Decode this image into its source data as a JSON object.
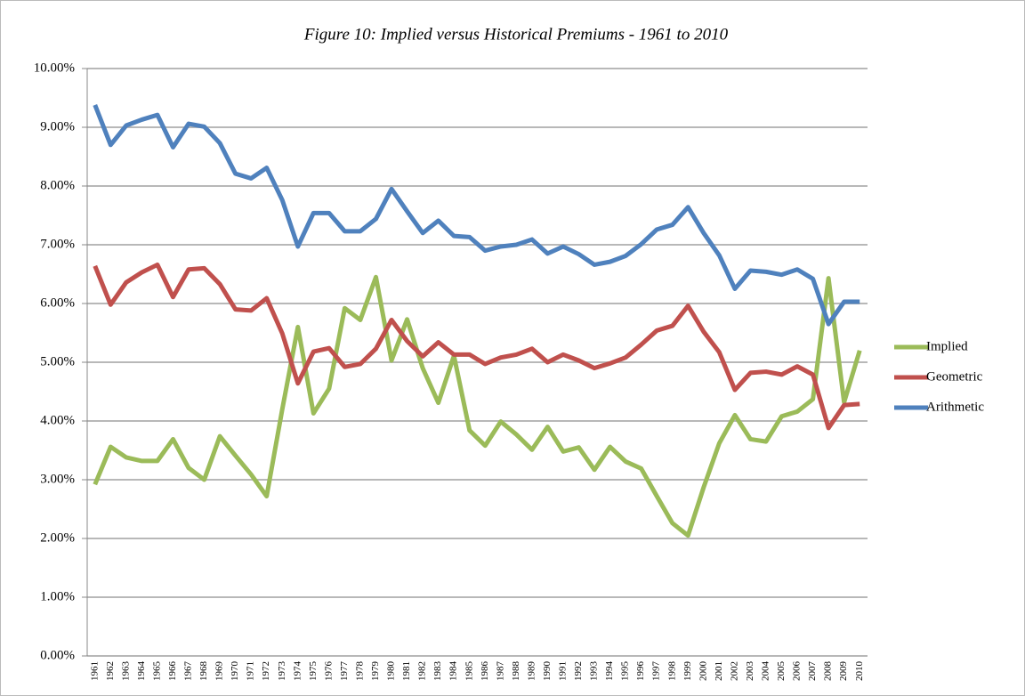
{
  "chart_data": {
    "type": "line",
    "title": "Figure 10: Implied versus Historical Premiums - 1961 to 2010",
    "categories": [
      "1961",
      "1962",
      "1963",
      "1964",
      "1965",
      "1966",
      "1967",
      "1968",
      "1969",
      "1970",
      "1971",
      "1972",
      "1973",
      "1974",
      "1975",
      "1976",
      "1977",
      "1978",
      "1979",
      "1980",
      "1981",
      "1982",
      "1983",
      "1984",
      "1985",
      "1986",
      "1987",
      "1988",
      "1989",
      "1990",
      "1991",
      "1992",
      "1993",
      "1994",
      "1995",
      "1996",
      "1997",
      "1998",
      "1999",
      "2000",
      "2001",
      "2002",
      "2003",
      "2004",
      "2005",
      "2006",
      "2007",
      "2008",
      "2009",
      "2010"
    ],
    "series": [
      {
        "name": "Implied",
        "color": "#9bbb59",
        "values": [
          2.92,
          3.56,
          3.38,
          3.32,
          3.32,
          3.69,
          3.2,
          3.0,
          3.74,
          3.41,
          3.09,
          2.72,
          4.2,
          5.6,
          4.13,
          4.55,
          5.92,
          5.72,
          6.45,
          5.03,
          5.73,
          4.9,
          4.31,
          5.11,
          3.84,
          3.58,
          3.99,
          3.77,
          3.51,
          3.9,
          3.48,
          3.55,
          3.17,
          3.56,
          3.31,
          3.19,
          2.72,
          2.26,
          2.05,
          2.87,
          3.62,
          4.1,
          3.69,
          3.65,
          4.08,
          4.16,
          4.37,
          6.43,
          4.32,
          5.2
        ]
      },
      {
        "name": "Geometric",
        "color": "#c0504d",
        "values": [
          6.64,
          5.98,
          6.36,
          6.53,
          6.66,
          6.11,
          6.58,
          6.6,
          6.33,
          5.9,
          5.88,
          6.09,
          5.49,
          4.64,
          5.18,
          5.24,
          4.92,
          4.97,
          5.23,
          5.72,
          5.36,
          5.1,
          5.34,
          5.13,
          5.13,
          4.97,
          5.08,
          5.13,
          5.23,
          5.0,
          5.13,
          5.03,
          4.9,
          4.98,
          5.08,
          5.3,
          5.54,
          5.62,
          5.96,
          5.52,
          5.17,
          4.53,
          4.82,
          4.84,
          4.79,
          4.93,
          4.79,
          3.88,
          4.27,
          4.29
        ]
      },
      {
        "name": "Arithmetic",
        "color": "#4f81bd",
        "values": [
          9.38,
          8.7,
          9.03,
          9.13,
          9.21,
          8.66,
          9.06,
          9.01,
          8.73,
          8.21,
          8.13,
          8.31,
          7.76,
          6.97,
          7.54,
          7.54,
          7.23,
          7.23,
          7.44,
          7.95,
          7.57,
          7.2,
          7.41,
          7.15,
          7.13,
          6.9,
          6.97,
          7.0,
          7.09,
          6.85,
          6.97,
          6.84,
          6.66,
          6.71,
          6.81,
          7.01,
          7.26,
          7.34,
          7.64,
          7.2,
          6.82,
          6.25,
          6.56,
          6.54,
          6.49,
          6.58,
          6.42,
          5.65,
          6.03,
          6.03
        ]
      }
    ],
    "ylim": [
      0,
      10
    ],
    "yticks": [
      {
        "value": 0,
        "label": "0.00%"
      },
      {
        "value": 1,
        "label": "1.00%"
      },
      {
        "value": 2,
        "label": "2.00%"
      },
      {
        "value": 3,
        "label": "3.00%"
      },
      {
        "value": 4,
        "label": "4.00%"
      },
      {
        "value": 5,
        "label": "5.00%"
      },
      {
        "value": 6,
        "label": "6.00%"
      },
      {
        "value": 7,
        "label": "7.00%"
      },
      {
        "value": 8,
        "label": "8.00%"
      },
      {
        "value": 9,
        "label": "9.00%"
      },
      {
        "value": 10,
        "label": "10.00%"
      }
    ],
    "grid": true,
    "legend": "right"
  }
}
